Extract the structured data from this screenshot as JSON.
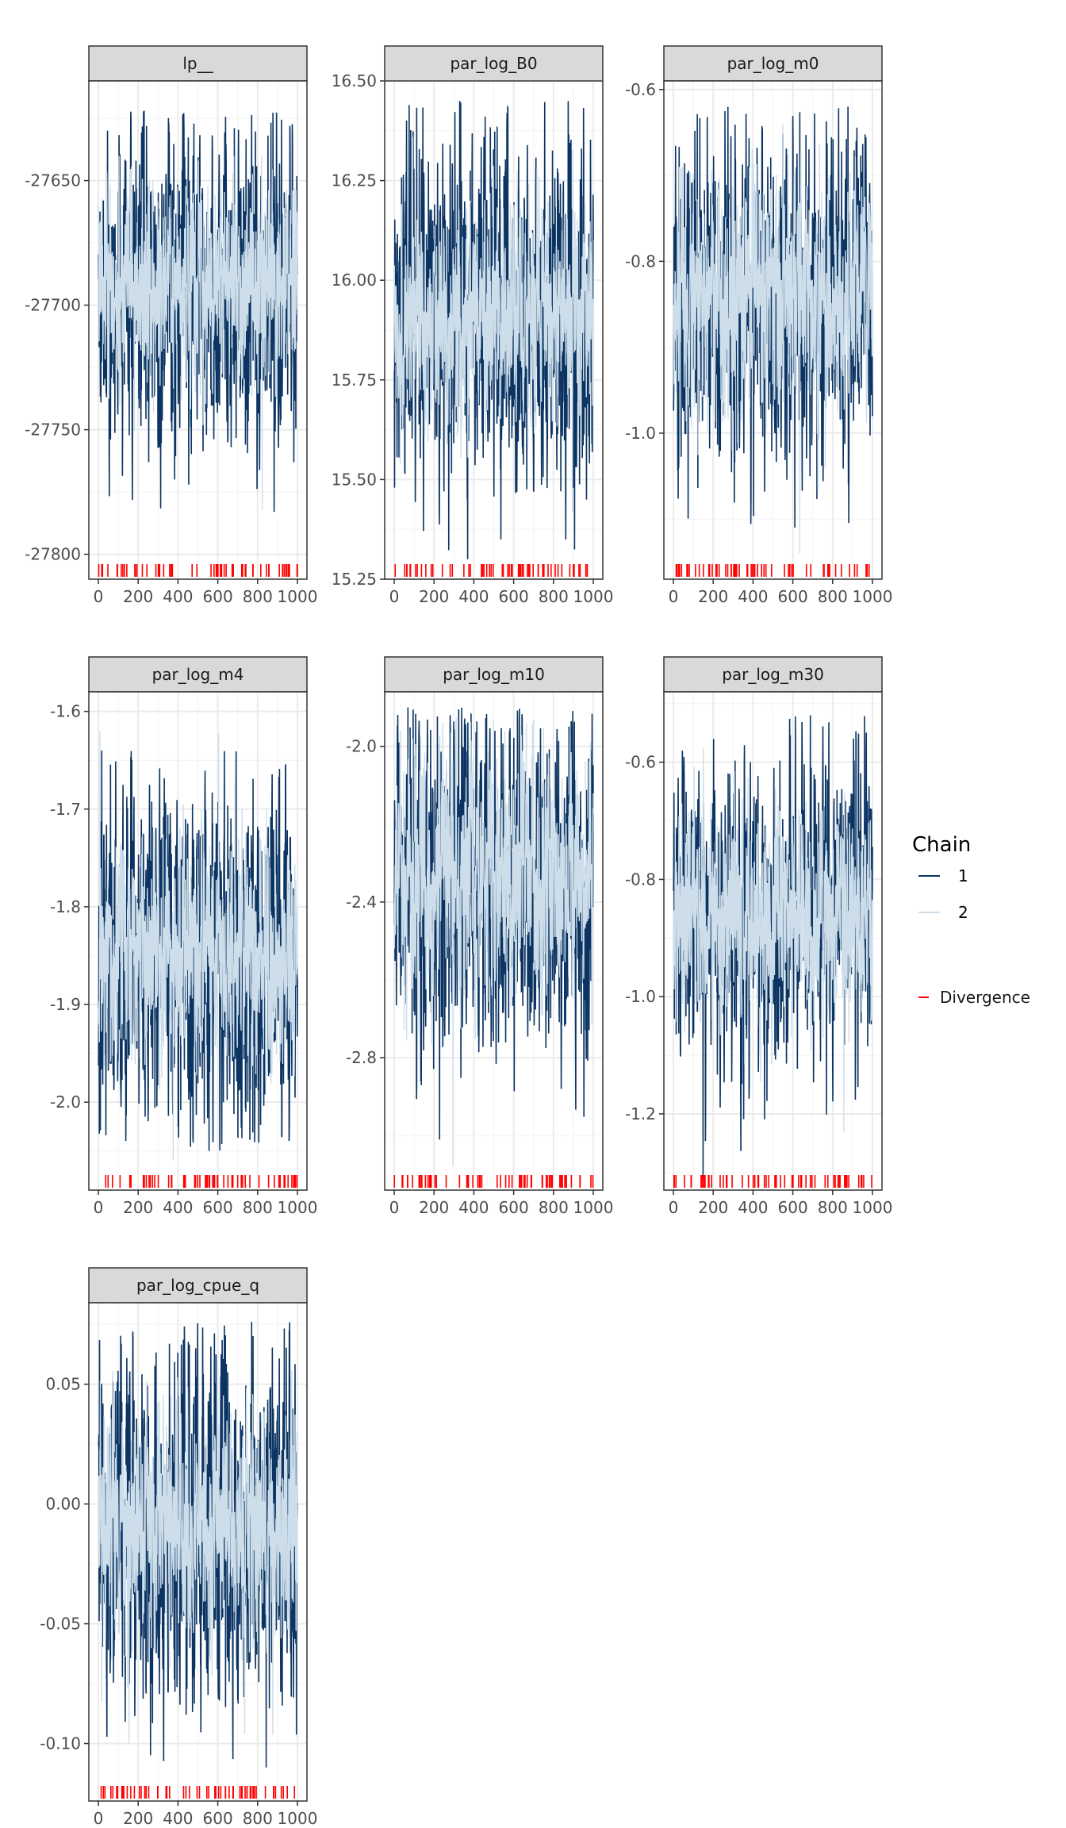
{
  "colors": {
    "chain1": "#0b3463",
    "chain2": "#cddeea",
    "divergence": "#ff0000",
    "strip": "#d9d9d9",
    "grid_major": "#ebebeb",
    "grid_minor": "#f4f4f4",
    "axis_text": "#4d4d4d",
    "border": "#333333"
  },
  "legend": {
    "title": "Chain",
    "chains": [
      "1",
      "2"
    ],
    "divergence_label": "Divergence"
  },
  "chart_data": [
    {
      "type": "line",
      "title": "lp__",
      "x_range": [
        0,
        1000
      ],
      "x_ticks": [
        "0",
        "200",
        "400",
        "600",
        "800",
        "1000"
      ],
      "ylim": [
        -27810,
        -27610
      ],
      "y_ticks": [
        -27650,
        -27700,
        -27750,
        -27800
      ],
      "y_tick_labels": [
        "-27650",
        "-27700",
        "-27750",
        "-27800"
      ],
      "series": [
        {
          "name": "1",
          "center": -27695,
          "spread": 28,
          "min": -27783,
          "max": -27622
        },
        {
          "name": "2",
          "center": -27692,
          "spread": 18,
          "min": -27782,
          "max": -27640
        }
      ]
    },
    {
      "type": "line",
      "title": "par_log_B0",
      "x_range": [
        0,
        1000
      ],
      "x_ticks": [
        "0",
        "200",
        "400",
        "600",
        "800",
        "1000"
      ],
      "ylim": [
        15.25,
        16.5
      ],
      "y_ticks": [
        16.5,
        16.25,
        16.0,
        15.75,
        15.5,
        15.25
      ],
      "y_tick_labels": [
        "16.50",
        "16.25",
        "16.00",
        "15.75",
        "15.50",
        "15.25"
      ],
      "series": [
        {
          "name": "1",
          "center": 15.92,
          "spread": 0.2,
          "min": 15.3,
          "max": 16.45
        },
        {
          "name": "2",
          "center": 15.92,
          "spread": 0.12,
          "min": 15.42,
          "max": 16.36
        }
      ]
    },
    {
      "type": "line",
      "title": "par_log_m0",
      "x_range": [
        0,
        1000
      ],
      "x_ticks": [
        "0",
        "200",
        "400",
        "600",
        "800",
        "1000"
      ],
      "ylim": [
        -1.17,
        -0.59
      ],
      "y_ticks": [
        -0.6,
        -0.8,
        -1.0
      ],
      "y_tick_labels": [
        "-0.6",
        "-0.8",
        "-1.0"
      ],
      "series": [
        {
          "name": "1",
          "center": -0.84,
          "spread": 0.09,
          "min": -1.11,
          "max": -0.62
        },
        {
          "name": "2",
          "center": -0.84,
          "spread": 0.06,
          "min": -1.14,
          "max": -0.64
        }
      ]
    },
    {
      "type": "line",
      "title": "par_log_m4",
      "x_range": [
        0,
        1000
      ],
      "x_ticks": [
        "0",
        "200",
        "400",
        "600",
        "800",
        "1000"
      ],
      "ylim": [
        -2.09,
        -1.58
      ],
      "y_ticks": [
        -1.6,
        -1.7,
        -1.8,
        -1.9,
        -2.0
      ],
      "y_tick_labels": [
        "-1.6",
        "-1.7",
        "-1.8",
        "-1.9",
        "-2.0"
      ],
      "series": [
        {
          "name": "1",
          "center": -1.85,
          "spread": 0.08,
          "min": -2.05,
          "max": -1.64
        },
        {
          "name": "2",
          "center": -1.85,
          "spread": 0.05,
          "min": -2.06,
          "max": -1.62
        }
      ]
    },
    {
      "type": "line",
      "title": "par_log_m10",
      "x_range": [
        0,
        1000
      ],
      "x_ticks": [
        "0",
        "200",
        "400",
        "600",
        "800",
        "1000"
      ],
      "ylim": [
        -3.14,
        -1.86
      ],
      "y_ticks": [
        -2.0,
        -2.4,
        -2.8
      ],
      "y_tick_labels": [
        "-2.0",
        "-2.4",
        "-2.8"
      ],
      "series": [
        {
          "name": "1",
          "center": -2.33,
          "spread": 0.2,
          "min": -3.01,
          "max": -1.9
        },
        {
          "name": "2",
          "center": -2.33,
          "spread": 0.14,
          "min": -3.08,
          "max": -1.93
        }
      ]
    },
    {
      "type": "line",
      "title": "par_log_m30",
      "x_range": [
        0,
        1000
      ],
      "x_ticks": [
        "0",
        "200",
        "400",
        "600",
        "800",
        "1000"
      ],
      "ylim": [
        -1.33,
        -0.48
      ],
      "y_ticks": [
        -0.6,
        -0.8,
        -1.0,
        -1.2
      ],
      "y_tick_labels": [
        "-0.6",
        "-0.8",
        "-1.0",
        "-1.2"
      ],
      "series": [
        {
          "name": "1",
          "center": -0.86,
          "spread": 0.12,
          "min": -1.31,
          "max": -0.52
        },
        {
          "name": "2",
          "center": -0.86,
          "spread": 0.08,
          "min": -1.23,
          "max": -0.56
        }
      ]
    },
    {
      "type": "line",
      "title": "par_log_cpue_q",
      "x_range": [
        0,
        1000
      ],
      "x_ticks": [
        "0",
        "200",
        "400",
        "600",
        "800",
        "1000"
      ],
      "ylim": [
        -0.124,
        0.084
      ],
      "y_ticks": [
        0.05,
        0.0,
        -0.05,
        -0.1
      ],
      "y_tick_labels": [
        "0.05",
        "0.00",
        "-0.05",
        "-0.10"
      ],
      "series": [
        {
          "name": "1",
          "center": -0.01,
          "spread": 0.035,
          "min": -0.11,
          "max": 0.076
        },
        {
          "name": "2",
          "center": -0.01,
          "spread": 0.022,
          "min": -0.1,
          "max": 0.06
        }
      ]
    }
  ]
}
